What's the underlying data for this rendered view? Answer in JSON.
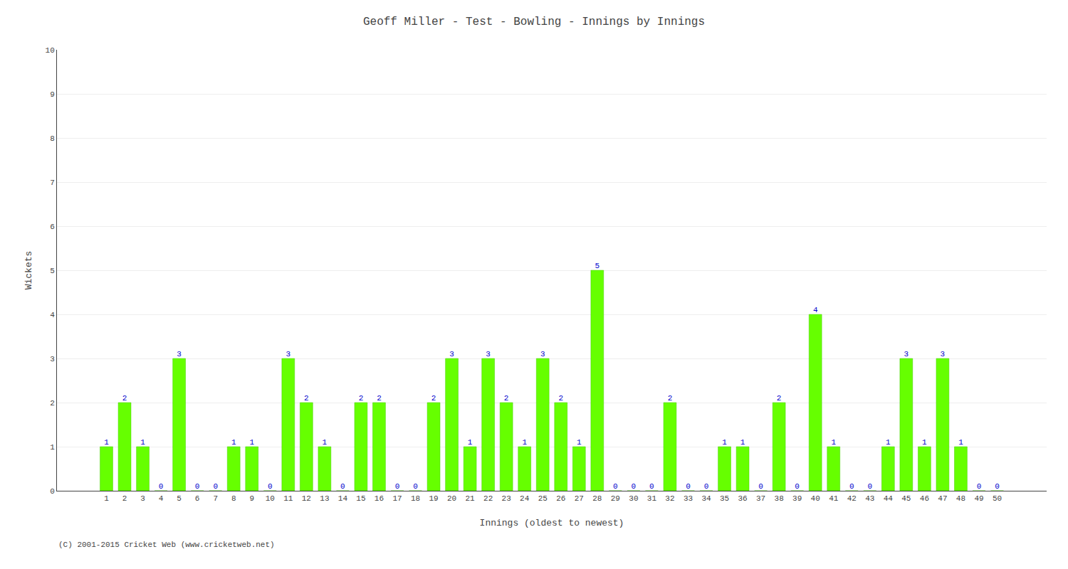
{
  "chart_data": {
    "type": "bar",
    "title": "Geoff Miller - Test - Bowling - Innings by Innings",
    "xlabel": "Innings (oldest to newest)",
    "ylabel": "Wickets",
    "categories": [
      "1",
      "2",
      "3",
      "4",
      "5",
      "6",
      "7",
      "8",
      "9",
      "10",
      "11",
      "12",
      "13",
      "14",
      "15",
      "16",
      "17",
      "18",
      "19",
      "20",
      "21",
      "22",
      "23",
      "24",
      "25",
      "26",
      "27",
      "28",
      "29",
      "30",
      "31",
      "32",
      "33",
      "34",
      "35",
      "36",
      "37",
      "38",
      "39",
      "40",
      "41",
      "42",
      "43",
      "44",
      "45",
      "46",
      "47",
      "48",
      "49",
      "50"
    ],
    "values": [
      1,
      2,
      1,
      0,
      3,
      0,
      0,
      1,
      1,
      0,
      3,
      2,
      1,
      0,
      2,
      2,
      0,
      0,
      2,
      3,
      1,
      3,
      2,
      1,
      3,
      2,
      1,
      5,
      0,
      0,
      0,
      2,
      0,
      0,
      1,
      1,
      0,
      2,
      0,
      4,
      1,
      0,
      0,
      1,
      3,
      1,
      3,
      1,
      0,
      0
    ],
    "color": "#66ff00",
    "ylim": [
      0,
      10
    ],
    "yticks": [
      0,
      1,
      2,
      3,
      4,
      5,
      6,
      7,
      8,
      9,
      10
    ],
    "grid": true,
    "data_labels": true,
    "annotations": [
      "(C) 2001-2015 Cricket Web (www.cricketweb.net)"
    ]
  }
}
